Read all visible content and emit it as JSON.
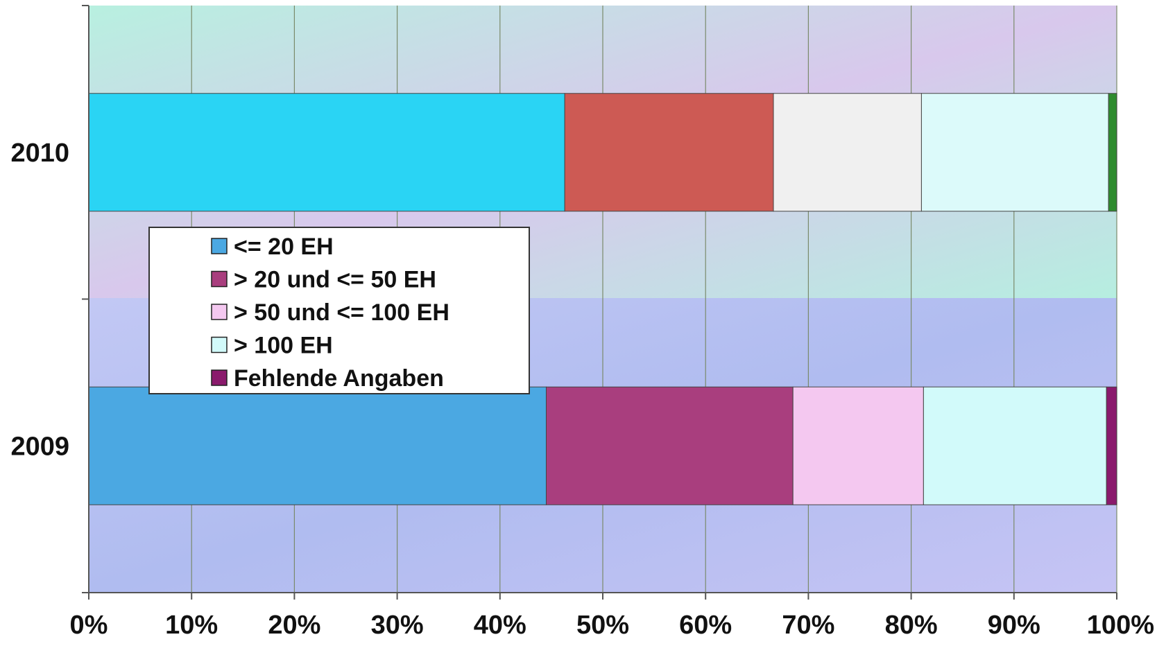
{
  "chart_data": {
    "type": "bar",
    "orientation": "horizontal",
    "stacked": true,
    "stacking": "percent",
    "categories": [
      "2010",
      "2009"
    ],
    "series": [
      {
        "name": "<= 20 EH",
        "values": [
          46.3,
          44.5
        ],
        "color": "#2ad4f4"
      },
      {
        "name": "> 20 und <= 50 EH",
        "values": [
          20.3,
          24.0
        ],
        "color": "#cd5a54"
      },
      {
        "name": "> 50 und <= 100 EH",
        "values": [
          14.4,
          12.7
        ],
        "color": "#f0f0f0"
      },
      {
        "name": "> 100 EH",
        "values": [
          18.2,
          17.8
        ],
        "color": "#dcfafa"
      },
      {
        "name": "Fehlende Angaben",
        "values": [
          0.8,
          1.0
        ],
        "color": "#2e8b2e"
      }
    ],
    "bar_colors_2009": [
      "#4ba8e2",
      "#a93e7e",
      "#f4c8f0",
      "#d2fafa",
      "#8a1a6c"
    ],
    "legend_colors": [
      "#4ba8e2",
      "#a93e7e",
      "#f4c8f0",
      "#d2fafa",
      "#8a1a6c"
    ],
    "xticks": [
      "0%",
      "10%",
      "20%",
      "30%",
      "40%",
      "50%",
      "60%",
      "70%",
      "80%",
      "90%",
      "100%"
    ],
    "xlim": [
      0,
      100
    ],
    "grid": true,
    "legend_position": "center-left"
  }
}
